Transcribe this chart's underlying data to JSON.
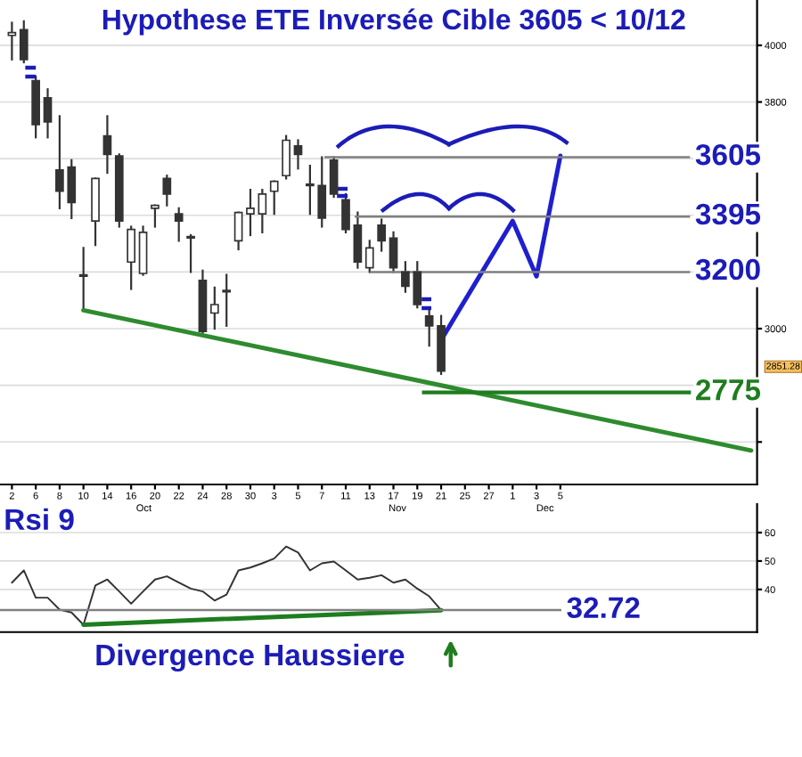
{
  "chart_data": [
    {
      "type": "candlestick",
      "title": "Hypothese ETE Inversée Cible 3605 < 10/12",
      "categories": [
        "2",
        null,
        "6",
        null,
        "8",
        null,
        "10",
        null,
        "14",
        null,
        "16",
        null,
        "20",
        null,
        "22",
        null,
        "24",
        null,
        "28",
        null,
        "30",
        null,
        "3",
        null,
        "5",
        null,
        "7",
        null,
        "11",
        null,
        "13",
        null,
        "17",
        null,
        "19",
        null,
        "21",
        null,
        "25",
        null,
        "27",
        null,
        "1",
        null,
        "3",
        null,
        "5",
        null,
        null,
        null,
        null,
        null,
        null,
        null,
        null,
        null,
        null,
        null,
        null,
        null,
        null,
        null,
        null
      ],
      "ohlc": [
        [
          4035,
          4080,
          3950,
          4045
        ],
        [
          4055,
          4085,
          3940,
          3950
        ],
        [
          3875,
          3890,
          3675,
          3720
        ],
        [
          3815,
          3845,
          3675,
          3730
        ],
        [
          3560,
          3750,
          3425,
          3485
        ],
        [
          3570,
          3595,
          3390,
          3445
        ],
        [
          3190,
          3285,
          3065,
          3185
        ],
        [
          3380,
          3530,
          3295,
          3530
        ],
        [
          3680,
          3750,
          3550,
          3615
        ],
        [
          3610,
          3615,
          3360,
          3380
        ],
        [
          3235,
          3360,
          3140,
          3350
        ],
        [
          3195,
          3360,
          3190,
          3340
        ],
        [
          3425,
          3435,
          3360,
          3435
        ],
        [
          3530,
          3540,
          3435,
          3475
        ],
        [
          3405,
          3425,
          3310,
          3380
        ],
        [
          3320,
          3330,
          3200,
          3325
        ],
        [
          3170,
          3205,
          2980,
          2990
        ],
        [
          3055,
          3145,
          3000,
          3085
        ],
        [
          3130,
          3190,
          3010,
          3135
        ],
        [
          3310,
          3410,
          3280,
          3410
        ],
        [
          3405,
          3490,
          3330,
          3425
        ],
        [
          3405,
          3490,
          3340,
          3475
        ],
        [
          3485,
          3520,
          3405,
          3520
        ],
        [
          3540,
          3680,
          3530,
          3665
        ],
        [
          3645,
          3665,
          3565,
          3615
        ],
        [
          3510,
          3575,
          3405,
          3505
        ],
        [
          3505,
          3605,
          3360,
          3390
        ],
        [
          3595,
          3605,
          3465,
          3475
        ],
        [
          3455,
          3475,
          3340,
          3350
        ],
        [
          3365,
          3410,
          3215,
          3235
        ],
        [
          3215,
          3310,
          3200,
          3285
        ],
        [
          3365,
          3385,
          3275,
          3310
        ],
        [
          3320,
          3340,
          3200,
          3215
        ],
        [
          3200,
          3235,
          3130,
          3150
        ],
        [
          3200,
          3235,
          3075,
          3085
        ],
        [
          3045,
          3065,
          2940,
          3010
        ],
        [
          3010,
          3045,
          2840,
          2850
        ],
        null,
        null,
        null,
        null,
        null,
        null,
        null,
        null,
        null,
        null,
        null,
        null,
        null,
        null,
        null,
        null,
        null,
        null,
        null,
        null,
        null,
        null,
        null,
        null,
        null,
        null
      ],
      "color": "#333333",
      "series": [
        {
          "type": "line",
          "color": "#1f1fd0",
          "values": [
            null,
            null,
            null,
            null,
            null,
            null,
            null,
            null,
            null,
            null,
            null,
            null,
            null,
            null,
            null,
            null,
            null,
            null,
            null,
            null,
            null,
            null,
            null,
            null,
            null,
            null,
            null,
            null,
            null,
            null,
            null,
            null,
            null,
            null,
            null,
            null,
            2960,
            null,
            null,
            null,
            null,
            null,
            3380,
            null,
            3185,
            null,
            3610,
            null,
            null,
            null,
            null,
            null,
            null,
            null,
            null,
            null,
            null,
            null,
            null,
            null,
            null,
            null,
            null
          ]
        },
        {
          "type": "line",
          "color": "#2e8b2e",
          "values": [
            null,
            null,
            null,
            null,
            null,
            null,
            3065,
            null,
            null,
            null,
            null,
            null,
            null,
            null,
            null,
            null,
            null,
            null,
            null,
            null,
            null,
            null,
            null,
            null,
            null,
            null,
            null,
            null,
            null,
            null,
            null,
            null,
            null,
            null,
            null,
            null,
            null,
            null,
            null,
            null,
            null,
            null,
            null,
            null,
            null,
            null,
            null,
            null,
            null,
            null,
            null,
            null,
            null,
            null,
            null,
            null,
            null,
            null,
            null,
            null,
            null,
            null,
            2570
          ]
        }
      ],
      "ylim": [
        2450,
        4160
      ],
      "yticks": [
        {
          "value": 2600,
          "label": null
        },
        {
          "value": 2800,
          "label": null
        },
        3000,
        {
          "value": 3200,
          "label": null
        },
        {
          "value": 3400,
          "label": null
        },
        {
          "value": 3600,
          "label": null
        },
        3800,
        4000
      ],
      "grid": "y",
      "ref_lines": [
        {
          "axis": "y",
          "value": 3605,
          "label": "3605"
        },
        {
          "axis": "y",
          "value": 3395,
          "label": "3395"
        },
        {
          "axis": "y",
          "value": 3200,
          "label": "3200"
        },
        {
          "axis": "y",
          "value": 2775,
          "label": "2775",
          "color": "#1e7d1e"
        }
      ],
      "annotations": [
        "Oct",
        "Nov",
        "Dec",
        "2851.28"
      ]
    },
    {
      "type": "line",
      "title": "Rsi 9",
      "categories": [
        "2",
        null,
        "6",
        null,
        "8",
        null,
        "10",
        null,
        "14",
        null,
        "16",
        null,
        "20",
        null,
        "22",
        null,
        "24",
        null,
        "28",
        null,
        "30",
        null,
        "3",
        null,
        "5",
        null,
        "7",
        null,
        "11",
        null,
        "13",
        null,
        "17",
        null,
        "19",
        null,
        "21",
        null,
        "25",
        null,
        "27",
        null,
        "1",
        null,
        "3",
        null,
        "5",
        null,
        null,
        null,
        null,
        null,
        null,
        null,
        null,
        null,
        null,
        null,
        null,
        null,
        null,
        null,
        null
      ],
      "series": [
        {
          "color": "#333333",
          "values": [
            42.4,
            46.7,
            37.1,
            37.1,
            32.9,
            31.9,
            27.6,
            41.4,
            43.5,
            39.3,
            35.0,
            39.3,
            43.5,
            44.6,
            42.4,
            40.3,
            39.3,
            36.1,
            38.2,
            46.7,
            47.7,
            49.2,
            50.9,
            55.1,
            53.0,
            46.7,
            49.2,
            49.8,
            46.7,
            43.5,
            44.1,
            45.0,
            42.4,
            43.5,
            40.3,
            37.6,
            32.7,
            null,
            null,
            null,
            null,
            null,
            null,
            null,
            null,
            null,
            null,
            null,
            null,
            null,
            null,
            null,
            null,
            null,
            null,
            null,
            null,
            null,
            null,
            null,
            null,
            null,
            null
          ]
        },
        {
          "color": "#1e7d1e",
          "values": [
            null,
            null,
            null,
            null,
            null,
            null,
            27.6,
            null,
            null,
            null,
            null,
            null,
            null,
            null,
            null,
            null,
            null,
            null,
            null,
            null,
            null,
            null,
            null,
            null,
            null,
            null,
            null,
            null,
            null,
            null,
            null,
            null,
            null,
            null,
            null,
            null,
            32.7,
            null,
            null,
            null,
            null,
            null,
            null,
            null,
            null,
            null,
            null,
            null,
            null,
            null,
            null,
            null,
            null,
            null,
            null,
            null,
            null,
            null,
            null,
            null,
            null,
            null,
            null
          ]
        }
      ],
      "ylim": [
        25,
        70
      ],
      "yticks": [
        40,
        50,
        60
      ],
      "grid": "y",
      "tick_labels": "y",
      "ref_lines": [
        {
          "axis": "y",
          "value": 32.72,
          "label": "32.72"
        }
      ],
      "annotations": [
        "Divergence Haussiere"
      ]
    }
  ]
}
